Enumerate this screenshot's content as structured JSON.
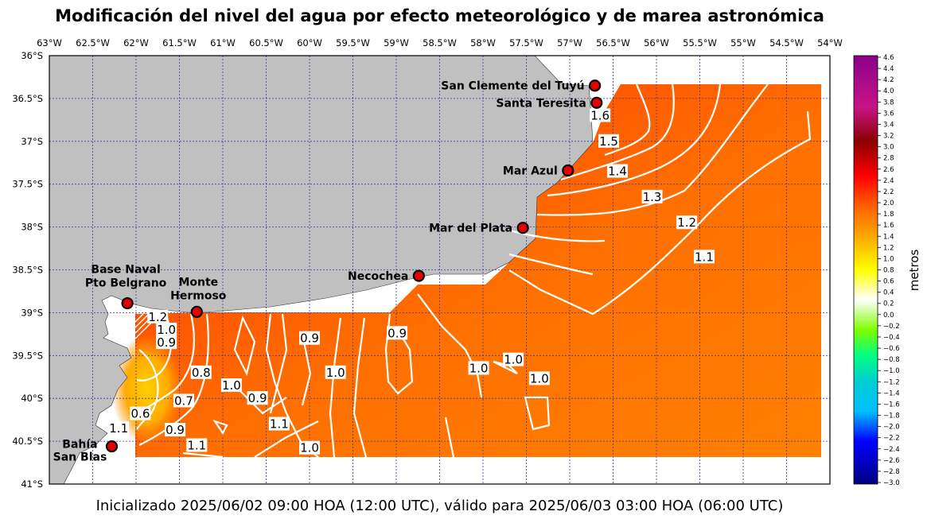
{
  "title": "Modificación del nivel del agua por efecto meteorológico y de marea astronómica",
  "footer": "Inicializado 2025/06/02 09:00 HOA (12:00 UTC), válido para 2025/06/03 03:00 HOA (06:00 UTC)",
  "lon_labels": [
    "63°W",
    "62.5°W",
    "62°W",
    "61.5°W",
    "61°W",
    "60.5°W",
    "60°W",
    "59.5°W",
    "59°W",
    "58.5°W",
    "58°W",
    "57.5°W",
    "57°W",
    "56.5°W",
    "56°W",
    "55.5°W",
    "55°W",
    "54.5°W",
    "54°W"
  ],
  "lat_labels": [
    "36°S",
    "36.5°S",
    "37°S",
    "37.5°S",
    "38°S",
    "38.5°S",
    "39°S",
    "39.5°S",
    "40°S",
    "40.5°S",
    "41°S"
  ],
  "colorbar": {
    "label": "metros",
    "ticks": [
      "4.6",
      "4.4",
      "4.2",
      "4.0",
      "3.8",
      "3.6",
      "3.4",
      "3.2",
      "3.0",
      "2.8",
      "2.6",
      "2.4",
      "2.2",
      "2.0",
      "1.8",
      "1.6",
      "1.4",
      "1.2",
      "1.0",
      "0.8",
      "0.6",
      "0.4",
      "0.2",
      "0.0",
      "−0.2",
      "−0.4",
      "−0.6",
      "−0.8",
      "−1.0",
      "−1.2",
      "−1.4",
      "−1.6",
      "−1.8",
      "−2.0",
      "−2.2",
      "−2.4",
      "−2.6",
      "−2.8",
      "−3.0"
    ]
  },
  "stations": [
    {
      "name": "San Clemente del Tuyú",
      "lon": -56.71,
      "lat": -36.35
    },
    {
      "name": "Santa Teresita",
      "lon": -56.69,
      "lat": -36.55
    },
    {
      "name": "Mar Azul",
      "lon": -57.02,
      "lat": -37.34
    },
    {
      "name": "Mar del Plata",
      "lon": -57.54,
      "lat": -38.01
    },
    {
      "name": "Necochea",
      "lon": -58.74,
      "lat": -38.57
    },
    {
      "name": "Base Naval Pto Belgrano",
      "line1": "Base Naval",
      "line2": "Pto Belgrano",
      "lon": -62.1,
      "lat": -38.89
    },
    {
      "name": "Monte Hermoso",
      "line1": "Monte",
      "line2": "Hermoso",
      "lon": -61.3,
      "lat": -38.99
    },
    {
      "name": "Bahía San Blas",
      "line1": "Bahía",
      "line2": "San Blas",
      "lon": -62.28,
      "lat": -40.56
    }
  ],
  "contour_labels": [
    {
      "text": "1.6",
      "lon": -56.65,
      "lat": -36.7
    },
    {
      "text": "1.5",
      "lon": -56.55,
      "lat": -37.0
    },
    {
      "text": "1.4",
      "lon": -56.45,
      "lat": -37.35
    },
    {
      "text": "1.3",
      "lon": -56.05,
      "lat": -37.65
    },
    {
      "text": "1.2",
      "lon": -55.65,
      "lat": -37.95
    },
    {
      "text": "1.1",
      "lon": -55.45,
      "lat": -38.35
    },
    {
      "text": "1.2",
      "lon": -61.75,
      "lat": -39.05
    },
    {
      "text": "1.0",
      "lon": -61.65,
      "lat": -39.2
    },
    {
      "text": "0.9",
      "lon": -61.65,
      "lat": -39.35
    },
    {
      "text": "0.9",
      "lon": -60.0,
      "lat": -39.3
    },
    {
      "text": "0.9",
      "lon": -58.99,
      "lat": -39.24
    },
    {
      "text": "0.8",
      "lon": -61.25,
      "lat": -39.7
    },
    {
      "text": "1.0",
      "lon": -60.9,
      "lat": -39.85
    },
    {
      "text": "1.0",
      "lon": -59.7,
      "lat": -39.7
    },
    {
      "text": "1.0",
      "lon": -58.05,
      "lat": -39.65
    },
    {
      "text": "1.0",
      "lon": -57.65,
      "lat": -39.55
    },
    {
      "text": "1.0",
      "lon": -57.35,
      "lat": -39.77
    },
    {
      "text": "0.9",
      "lon": -60.6,
      "lat": -40.0
    },
    {
      "text": "0.7",
      "lon": -61.45,
      "lat": -40.03
    },
    {
      "text": "0.6",
      "lon": -61.95,
      "lat": -40.18
    },
    {
      "text": "0.9",
      "lon": -61.55,
      "lat": -40.37
    },
    {
      "text": "1.1",
      "lon": -62.2,
      "lat": -40.35
    },
    {
      "text": "1.1",
      "lon": -60.35,
      "lat": -40.3
    },
    {
      "text": "1.1",
      "lon": -61.3,
      "lat": -40.55
    },
    {
      "text": "1.0",
      "lon": -60.0,
      "lat": -40.58
    }
  ]
}
